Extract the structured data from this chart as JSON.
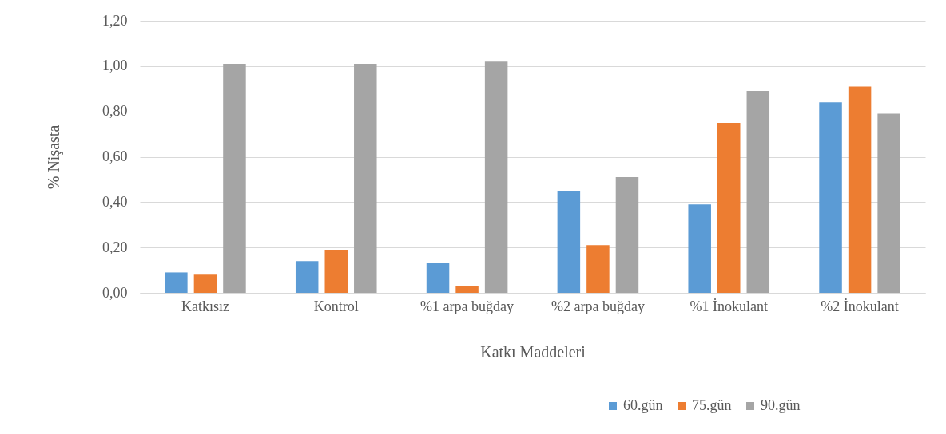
{
  "chart_data": {
    "type": "bar",
    "xlabel": "Katkı Maddeleri",
    "ylabel": "%  Nişasta",
    "categories": [
      "Katkısız",
      "Kontrol",
      "%1 arpa buğday",
      "%2 arpa buğday",
      "%1 İnokulant",
      "%2 İnokulant"
    ],
    "series": [
      {
        "name": "60.gün",
        "color": "#5b9bd5",
        "values": [
          0.09,
          0.14,
          0.13,
          0.45,
          0.39,
          0.84
        ]
      },
      {
        "name": "75.gün",
        "color": "#ed7d31",
        "values": [
          0.08,
          0.19,
          0.03,
          0.21,
          0.75,
          0.91
        ]
      },
      {
        "name": "90.gün",
        "color": "#a5a5a5",
        "values": [
          1.01,
          1.01,
          1.02,
          0.51,
          0.89,
          0.79
        ]
      }
    ],
    "ylim": [
      0,
      1.2
    ],
    "yticks": [
      {
        "value": 0,
        "label": "0,00"
      },
      {
        "value": 0.2,
        "label": "0,20"
      },
      {
        "value": 0.4,
        "label": "0,40"
      },
      {
        "value": 0.6,
        "label": "0,60"
      },
      {
        "value": 0.8,
        "label": "0,80"
      },
      {
        "value": 1.0,
        "label": "1,00"
      },
      {
        "value": 1.2,
        "label": "1,20"
      }
    ],
    "grid": "y",
    "legend": "bottom right"
  }
}
